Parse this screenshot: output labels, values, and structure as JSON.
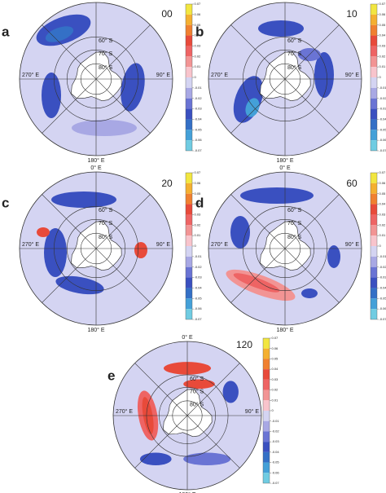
{
  "panels": [
    {
      "letter": "a",
      "label": "00"
    },
    {
      "letter": "b",
      "label": "10"
    },
    {
      "letter": "c",
      "label": "20"
    },
    {
      "letter": "d",
      "label": "60"
    },
    {
      "letter": "e",
      "label": "120"
    }
  ],
  "grid_labels": {
    "top": "0° E",
    "right": "90° E",
    "bottom": "180° E",
    "left": "270° E",
    "lat60": "60° S",
    "lat70": "70° S",
    "lat80": "80° S"
  },
  "colorbar": {
    "ticks": [
      0.07,
      0.06,
      0.05,
      0.04,
      0.03,
      0.02,
      0.01,
      0,
      -0.01,
      -0.02,
      -0.03,
      -0.04,
      -0.05,
      -0.06,
      -0.07
    ],
    "colors": [
      "#f2e640",
      "#f4b030",
      "#f08030",
      "#e84a3a",
      "#ee6464",
      "#f29494",
      "#f8c4cc",
      "#d4d4f2",
      "#a8a8e4",
      "#6a74d4",
      "#3a50c0",
      "#3470c6",
      "#44a0d8",
      "#70cce2"
    ]
  }
}
